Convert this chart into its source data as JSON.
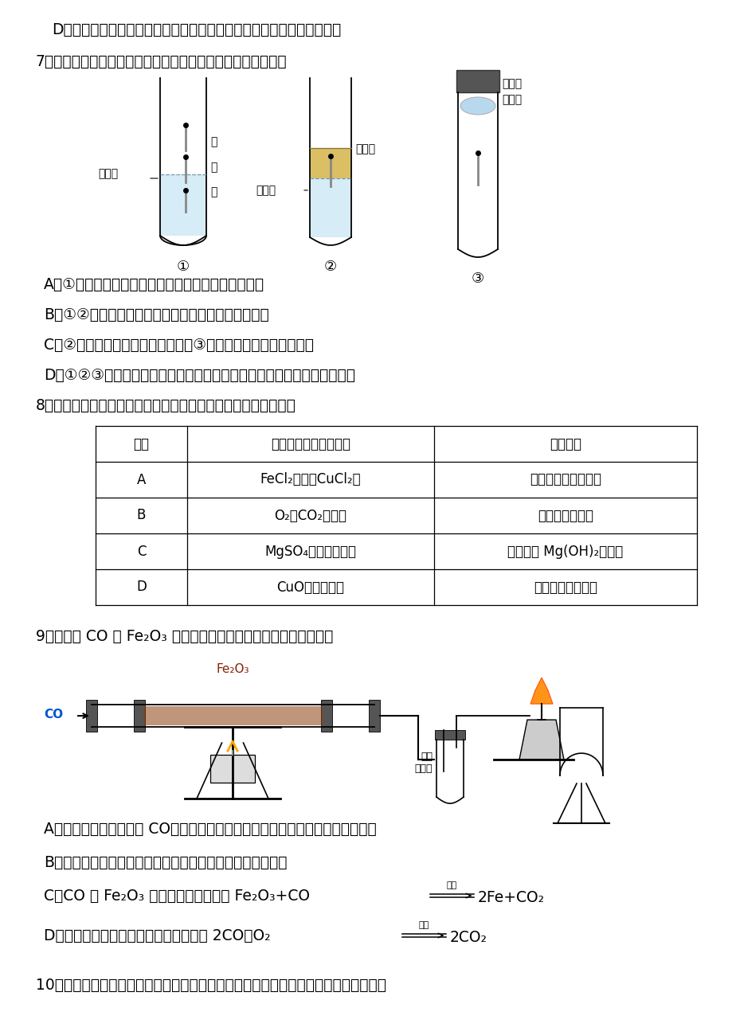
{
  "bg_color": "#ffffff",
  "page_width": 9.2,
  "page_height": 13.0,
  "dpi": 100,
  "font_size": 13.5,
  "font_size_sm": 12,
  "text_color": "#000000",
  "content": {
    "line_d": "D．若不慎将氢氧化钠沾到皮肤上，要用大量的水冲洗，再涂上硼酸溶液",
    "q7": "7．如图，通过实验探究铁钉锈蚀的条件。下列说法不正确的是",
    "q7a": "A．①中甲、乙、丙三处比较，生锈最明显的地方是丙",
    "q7b": "B．①②中使用煮沸的蒸馏水，目的是除去水中的氧气",
    "q7c": "C．②中植物油的作用是隔绝空气，③中氯化钙的作用是作干燥剂",
    "q7d": "D．①②③对比实验，得出结论：铁生锈的主要条件是与空气、水直接接触",
    "q8": "8．除去下列物质中的少量杂质，下列实验方案不能达到目的的是",
    "table_header": [
      "选项",
      "物质（括号内为杂质）",
      "实验方案"
    ],
    "table_rows": [
      [
        "A",
        "FeCl₂溶液（CuCl₂）",
        "加入过量铁粉，过滤"
      ],
      [
        "B",
        "O₂（CO₂气体）",
        "通过灼热的铜网"
      ],
      [
        "C",
        "MgSO₄溶液（硫酸）",
        "加入过量 Mg(OH)₂，过滤"
      ],
      [
        "D",
        "CuO（木炭粉）",
        "在空气中充分灼烧"
      ]
    ],
    "q9": "9．下图是 CO 与 Fe₂O₃ 反应的实验装置图，下列说法不正确的是",
    "q9a": "A．实验开始时，先通入 CO，在装置出口处验纯后点燃酒精灯，再点燃酒精喷灯",
    "q9b": "B．实验过程中看到，玻璃管里的粉末由红棕色逐渐变为黑色",
    "q9c_pre": "C．CO 与 Fe₂O₃ 反应的化学方程式为 Fe₂O₃+CO",
    "q9c_cond": "高温",
    "q9c_post": "2Fe+CO₂",
    "q9d_pre": "D．尾气处理时发生反应的化学方程式为 2CO＋O₂",
    "q9d_cond": "点燃",
    "q9d_post": "2CO₂",
    "q10": "10．某有机物由碳、氢、氧三种元素组成，图甲是该物质的元素质量分数饼状图，图乙"
  }
}
